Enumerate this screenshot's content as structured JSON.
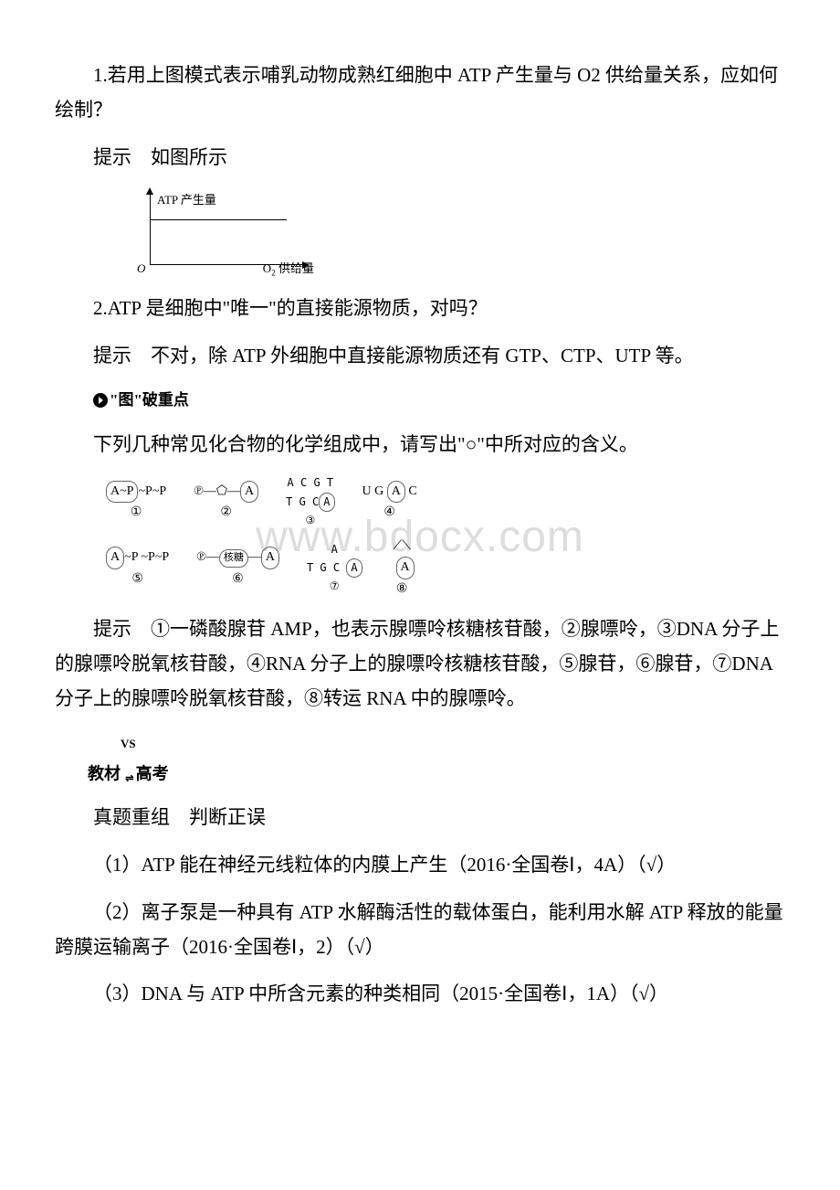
{
  "q1": {
    "text": "1.若用上图模式表示哺乳动物成熟红细胞中 ATP 产生量与 O2 供给量关系，应如何绘制？",
    "hint_prefix": "提示　如图所示",
    "graph": {
      "y_label": "ATP 产生量",
      "x_label": "O₂ 供给量",
      "origin": "O"
    }
  },
  "q2": {
    "text": "2.ATP 是细胞中\"唯一\"的直接能源物质，对吗？",
    "hint": "提示　不对，除 ATP 外细胞中直接能源物质还有 GTP、CTP、UTP 等。"
  },
  "section1": {
    "label": "\"图\"破重点"
  },
  "compounds": {
    "intro": "下列几种常见化合物的化学组成中，请写出\"○\"中所对应的含义。",
    "watermark": "www.bdocx.com",
    "hint": "提示　①一磷酸腺苷 AMP，也表示腺嘌呤核糖核苷酸，②腺嘌呤，③DNA 分子上的腺嘌呤脱氧核苷酸，④RNA 分子上的腺嘌呤核糖核苷酸，⑤腺苷，⑥腺苷，⑦DNA 分子上的腺嘌呤脱氧核苷酸，⑧转运 RNA 中的腺嘌呤。"
  },
  "section2": {
    "prefix": "教材",
    "vs": "VS",
    "suffix": "高考"
  },
  "truefalse": {
    "title": "真题重组　判断正误",
    "items": [
      "（1）ATP 能在神经元线粒体的内膜上产生（2016·全国卷Ⅰ，4A）（√）",
      "（2）离子泵是一种具有 ATP 水解酶活性的载体蛋白，能利用水解 ATP 释放的能量跨膜运输离子（2016·全国卷Ⅰ，2）（√）",
      "（3）DNA 与 ATP 中所含元素的种类相同（2015·全国卷Ⅰ，1A）（√）"
    ]
  }
}
